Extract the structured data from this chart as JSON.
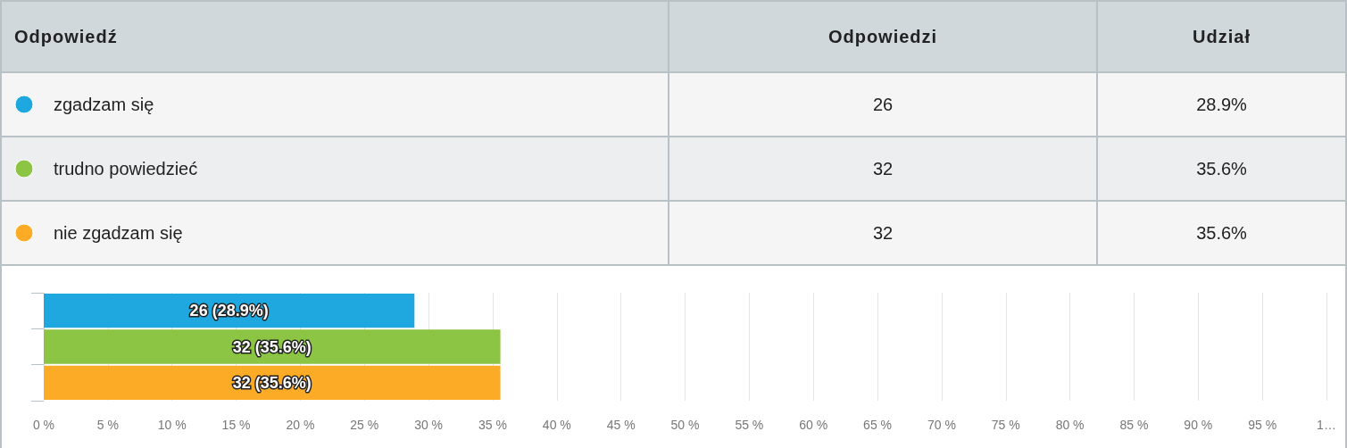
{
  "chart_data": [
    {
      "type": "other",
      "categories": [
        "zgadzam się",
        "trudno powiedzieć",
        "nie zgadzam się"
      ],
      "colors": [
        "#1fa8e0",
        "#8bc543",
        "#fbab25"
      ],
      "annotations": [
        "Odpowiedź",
        "Odpowiedzi",
        "Udział",
        "26",
        "28.9%",
        "32",
        "35.6%",
        "32",
        "35.6%"
      ]
    },
    {
      "type": "bar",
      "orientation": "horizontal",
      "categories": [
        null,
        null,
        null
      ],
      "values": [
        28.9,
        35.6,
        35.6
      ],
      "colors": [
        "#1fa8e0",
        "#8bc543",
        "#fbab25"
      ],
      "value_labels": [
        "26 (28.9%)",
        "32 (35.6%)",
        "32 (35.6%)"
      ],
      "xlim": [
        0,
        100
      ],
      "xticks": [
        {
          "value": 0,
          "label": "0 %"
        },
        {
          "value": 5,
          "label": "5 %"
        },
        {
          "value": 10,
          "label": "10 %"
        },
        {
          "value": 15,
          "label": "15 %"
        },
        {
          "value": 20,
          "label": "20 %"
        },
        {
          "value": 25,
          "label": "25 %"
        },
        {
          "value": 30,
          "label": "30 %"
        },
        {
          "value": 35,
          "label": "35 %"
        },
        {
          "value": 40,
          "label": "40 %"
        },
        {
          "value": 45,
          "label": "45 %"
        },
        {
          "value": 50,
          "label": "50 %"
        },
        {
          "value": 55,
          "label": "55 %"
        },
        {
          "value": 60,
          "label": "60 %"
        },
        {
          "value": 65,
          "label": "65 %"
        },
        {
          "value": 70,
          "label": "70 %"
        },
        {
          "value": 75,
          "label": "75 %"
        },
        {
          "value": 80,
          "label": "80 %"
        },
        {
          "value": 85,
          "label": "85 %"
        },
        {
          "value": 90,
          "label": "90 %"
        },
        {
          "value": 95,
          "label": "95 %"
        },
        {
          "value": 100,
          "label": "1…"
        }
      ],
      "grid": "x",
      "tick_labels": "x"
    }
  ]
}
